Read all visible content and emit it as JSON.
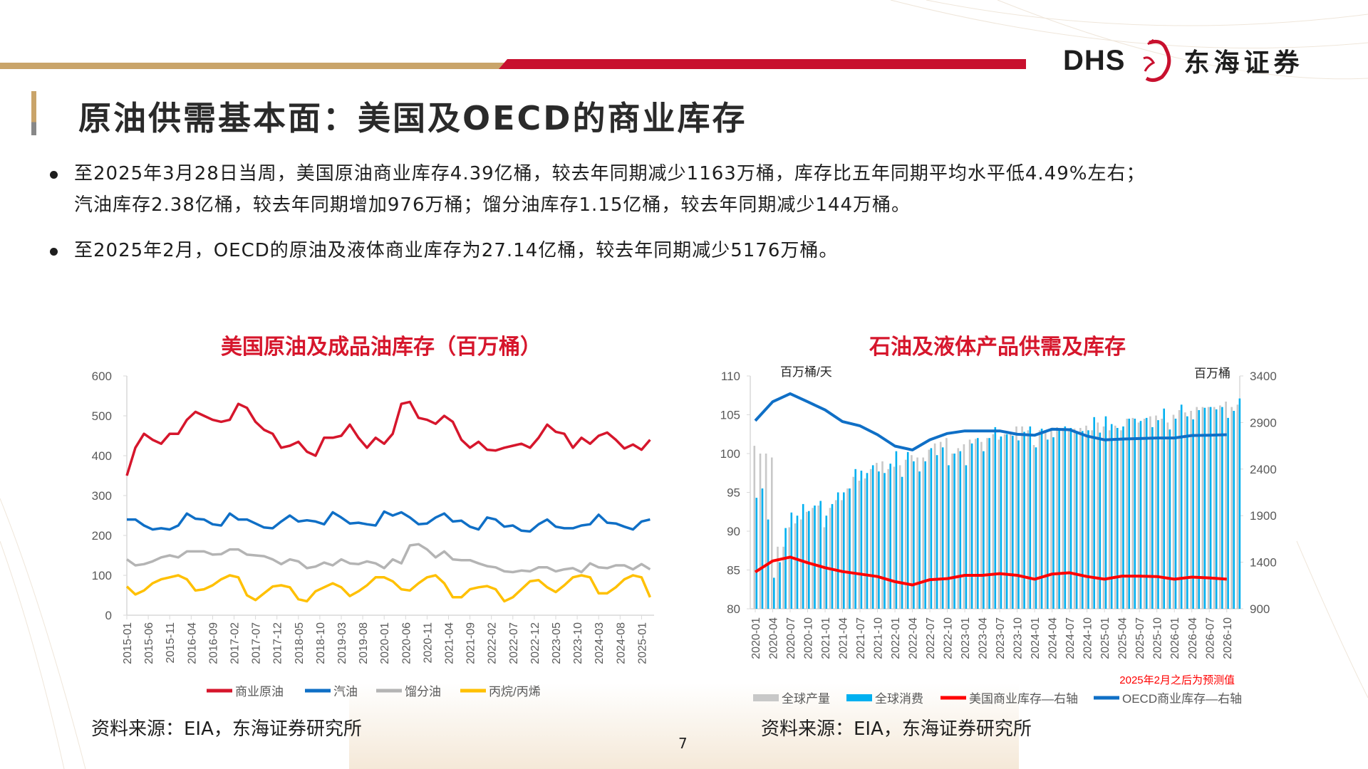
{
  "header": {
    "logo_text": "DHS",
    "logo_cn": "东海证券",
    "title": "原油供需基本面：美国及OECD的商业库存"
  },
  "bullets": [
    {
      "lines": [
        "至2025年3月28日当周，美国原油商业库存4.39亿桶，较去年同期减少1163万桶，库存比五年同期平均水平低4.49%左右；",
        "汽油库存2.38亿桶，较去年同期增加976万桶；馏分油库存1.15亿桶，较去年同期减少144万桶。"
      ]
    },
    {
      "lines": [
        "至2025年2月，OECD的原油及液体商业库存为27.14亿桶，较去年同期减少5176万桶。"
      ]
    }
  ],
  "sources": {
    "left": "资料来源：EIA，东海证券研究所",
    "right": "资料来源：EIA，东海证券研究所"
  },
  "page_number": "7",
  "chart_data": [
    {
      "type": "line",
      "title": "美国原油及成品油库存（百万桶）",
      "xlabel": "",
      "ylabel": "",
      "ylim": [
        0,
        600
      ],
      "yticks": [
        "0",
        "100",
        "200",
        "300",
        "400",
        "500",
        "600"
      ],
      "x_start": "2015-01",
      "x_step_months": 2,
      "xtick_labels": [
        "2015-01",
        "2015-06",
        "2015-11",
        "2016-04",
        "2016-09",
        "2017-02",
        "2017-07",
        "2017-12",
        "2018-05",
        "2018-10",
        "2019-03",
        "2019-08",
        "2020-01",
        "2020-06",
        "2020-11",
        "2021-04",
        "2021-09",
        "2022-02",
        "2022-07",
        "2022-12",
        "2023-05",
        "2023-10",
        "2024-03",
        "2024-08",
        "2025-01"
      ],
      "legend_position": "bottom",
      "series": [
        {
          "name": "商业原油",
          "color": "#d6162c",
          "values": [
            350,
            420,
            455,
            440,
            430,
            455,
            455,
            490,
            510,
            500,
            490,
            485,
            490,
            530,
            520,
            485,
            465,
            455,
            420,
            425,
            435,
            410,
            400,
            445,
            445,
            450,
            478,
            445,
            420,
            445,
            430,
            455,
            530,
            535,
            495,
            490,
            480,
            500,
            485,
            440,
            420,
            435,
            415,
            413,
            420,
            425,
            430,
            420,
            445,
            478,
            460,
            455,
            420,
            445,
            430,
            450,
            458,
            440,
            418,
            428,
            415,
            440
          ]
        },
        {
          "name": "汽油",
          "color": "#0f6fc6",
          "values": [
            240,
            240,
            225,
            215,
            218,
            215,
            225,
            255,
            242,
            240,
            228,
            225,
            255,
            240,
            240,
            230,
            220,
            218,
            235,
            250,
            235,
            238,
            235,
            228,
            258,
            245,
            230,
            232,
            228,
            225,
            260,
            250,
            258,
            245,
            228,
            230,
            245,
            255,
            235,
            237,
            222,
            215,
            245,
            240,
            222,
            225,
            212,
            210,
            228,
            240,
            222,
            218,
            218,
            225,
            228,
            252,
            232,
            230,
            222,
            215,
            235,
            240
          ]
        },
        {
          "name": "馏分油",
          "color": "#b4b4b4",
          "values": [
            140,
            125,
            128,
            135,
            145,
            150,
            145,
            160,
            160,
            160,
            152,
            153,
            165,
            165,
            152,
            150,
            148,
            140,
            128,
            140,
            135,
            118,
            122,
            132,
            125,
            140,
            130,
            128,
            135,
            130,
            118,
            140,
            130,
            175,
            178,
            165,
            145,
            160,
            140,
            138,
            138,
            130,
            123,
            120,
            110,
            108,
            112,
            110,
            120,
            120,
            110,
            115,
            118,
            108,
            130,
            120,
            118,
            125,
            125,
            115,
            128,
            115
          ]
        },
        {
          "name": "丙烷/丙烯",
          "color": "#ffc000",
          "values": [
            72,
            52,
            62,
            80,
            90,
            95,
            100,
            90,
            62,
            65,
            75,
            90,
            100,
            95,
            50,
            38,
            55,
            72,
            75,
            70,
            40,
            35,
            60,
            70,
            80,
            70,
            48,
            60,
            75,
            95,
            95,
            85,
            65,
            62,
            80,
            95,
            100,
            80,
            45,
            45,
            65,
            70,
            73,
            65,
            35,
            45,
            65,
            85,
            88,
            70,
            58,
            75,
            95,
            100,
            95,
            55,
            55,
            70,
            90,
            100,
            95,
            45
          ]
        }
      ]
    },
    {
      "type": "bar+line",
      "title": "石油及液体产品供需及库存",
      "left_axis_label": "百万桶/天",
      "right_axis_label": "百万桶",
      "ylim": [
        80,
        110
      ],
      "yticks": [
        "80",
        "85",
        "90",
        "95",
        "100",
        "105",
        "110"
      ],
      "y2lim": [
        900,
        3400
      ],
      "y2ticks": [
        "900",
        "1400",
        "1900",
        "2400",
        "2900",
        "3400"
      ],
      "x_start": "2020-01",
      "xtick_labels": [
        "2020-01",
        "2020-04",
        "2020-07",
        "2020-10",
        "2021-01",
        "2021-04",
        "2021-07",
        "2021-10",
        "2022-01",
        "2022-04",
        "2022-07",
        "2022-10",
        "2023-01",
        "2023-04",
        "2023-07",
        "2023-10",
        "2024-01",
        "2024-04",
        "2024-07",
        "2024-10",
        "2025-01",
        "2025-04",
        "2025-07",
        "2025-10",
        "2026-01",
        "2026-04",
        "2026-07",
        "2026-10"
      ],
      "annotation": "2025年2月之后为预测值",
      "legend_position": "bottom",
      "bar_series": [
        {
          "name": "全球产量",
          "color": "#c8c8c8",
          "axis": "left",
          "values": [
            101,
            100,
            100,
            99.5,
            88,
            88,
            90.5,
            91,
            91.5,
            92.5,
            93,
            93.3,
            90.5,
            93,
            94,
            94,
            95.5,
            97,
            96.5,
            96.8,
            98,
            98.8,
            99,
            98,
            98.3,
            98.5,
            99.2,
            99.8,
            99.5,
            99.5,
            100.5,
            101.3,
            101.5,
            102,
            100,
            100.7,
            101.2,
            101.8,
            101.9,
            101.5,
            102,
            102.5,
            101.8,
            102.5,
            102.5,
            103.5,
            103.5,
            103,
            101.1,
            103,
            102.8,
            103.3,
            103.4,
            103.3,
            103,
            103.2,
            103.3,
            103.6,
            103,
            104,
            103.5,
            103,
            103.6,
            103,
            104.5,
            104.6,
            104,
            104.5,
            104.8,
            104.9,
            104.5,
            104,
            105,
            105.6,
            105.3,
            105.5,
            106,
            106,
            106,
            106,
            106.2,
            106.7,
            106,
            106.3
          ]
        },
        {
          "name": "全球消费",
          "color": "#00b0f0",
          "axis": "left",
          "values": [
            94.3,
            95.5,
            91.5,
            84,
            86,
            90.4,
            92.4,
            92,
            93.5,
            92.6,
            93.3,
            93.9,
            92,
            93.5,
            95,
            95,
            95.5,
            98,
            97.8,
            97.5,
            98.5,
            97.7,
            97.5,
            98.7,
            100.3,
            97,
            100.2,
            99,
            97.7,
            99,
            100.7,
            99.8,
            100.8,
            98.5,
            100,
            100.3,
            98.5,
            101.3,
            102,
            100.3,
            102,
            103.4,
            102.2,
            102.5,
            102.3,
            101.7,
            102.8,
            103.5,
            100.8,
            103.2,
            101.8,
            102.1,
            103,
            103.5,
            103.3,
            102.8,
            102.9,
            103,
            104.7,
            102.7,
            104.8,
            103.8,
            103.3,
            103.5,
            104.5,
            104.5,
            104.2,
            104.6,
            103.4,
            104.3,
            105.8,
            103.1,
            104.5,
            106.3,
            104.8,
            104.4,
            105.6,
            105.9,
            106,
            105.7,
            106,
            104.6,
            105.5,
            107.1
          ]
        }
      ],
      "line_series": [
        {
          "name": "美国商业库存—右轴",
          "color": "#ff0000",
          "axis": "right",
          "x_step_months": 3,
          "values": [
            1295,
            1414,
            1455,
            1395,
            1341,
            1300,
            1273,
            1246,
            1191,
            1156,
            1213,
            1224,
            1259,
            1259,
            1278,
            1259,
            1218,
            1273,
            1287,
            1246,
            1218,
            1251,
            1251,
            1246,
            1218,
            1240,
            1232,
            1218
          ]
        },
        {
          "name": "OECD商业库存—右轴",
          "color": "#0f6fc6",
          "axis": "right",
          "x_step_months": 3,
          "values": [
            2919,
            3123,
            3210,
            3123,
            3035,
            2910,
            2864,
            2769,
            2647,
            2606,
            2715,
            2782,
            2810,
            2810,
            2810,
            2774,
            2764,
            2829,
            2823,
            2755,
            2714,
            2723,
            2728,
            2734,
            2734,
            2761,
            2764,
            2769
          ]
        }
      ]
    }
  ]
}
